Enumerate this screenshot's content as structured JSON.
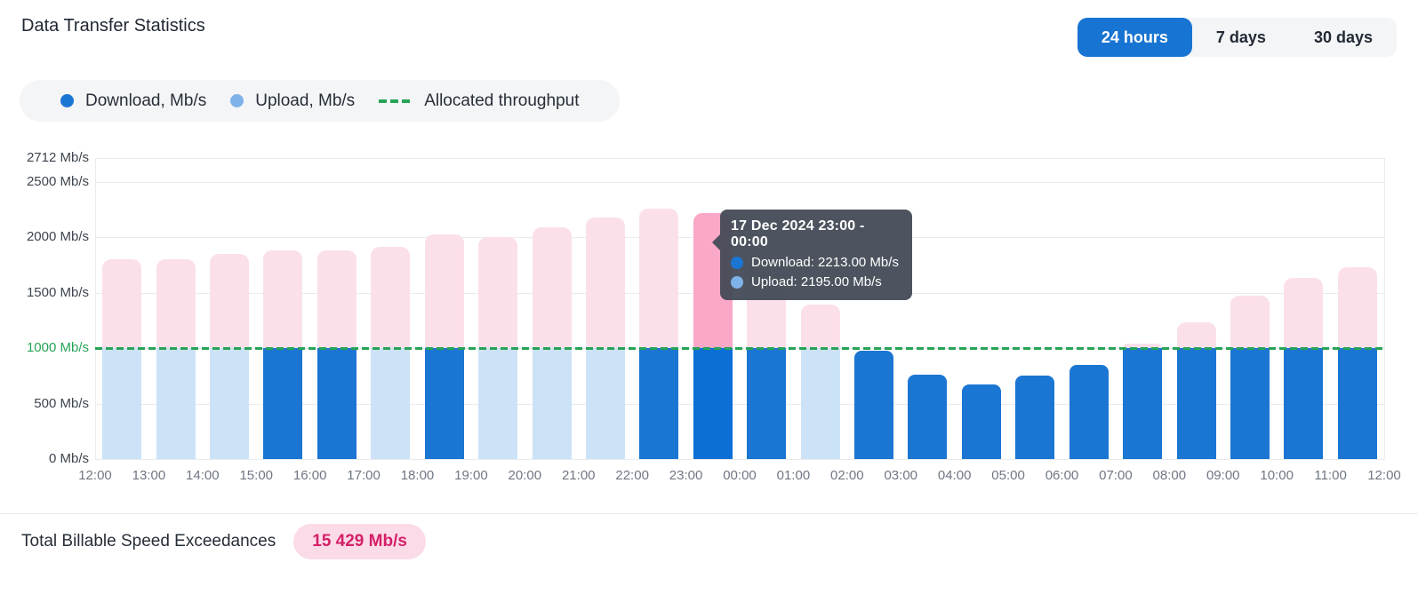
{
  "header": {
    "title": "Data Transfer Statistics",
    "ranges": [
      {
        "label": "24 hours",
        "selected": true
      },
      {
        "label": "7 days",
        "selected": false
      },
      {
        "label": "30 days",
        "selected": false
      }
    ]
  },
  "legend": {
    "download_label": "Download, Mb/s",
    "upload_label": "Upload, Mb/s",
    "allocated_label": "Allocated throughput"
  },
  "tooltip": {
    "title": "17 Dec 2024 23:00 - 00:00",
    "rows": [
      {
        "series": "download",
        "label": "Download: 2213.00 Mb/s"
      },
      {
        "series": "upload",
        "label": "Upload: 2195.00 Mb/s"
      }
    ]
  },
  "footer": {
    "label": "Total Billable Speed Exceedances",
    "badge": "15 429 Mb/s"
  },
  "colors": {
    "download": "#1B76D3",
    "download_highlight": "#0B6FD6",
    "upload_bar": "#CCE3F7",
    "upload_dot": "#7FB2E9",
    "exceed": "#FBE0EA",
    "exceed_highlight": "#F9A8C7",
    "allocated_green": "#26A356",
    "selected_button": "#1774D2",
    "badge_bg": "#FBDBE7",
    "badge_text": "#D42069",
    "tooltip_bg": "#424955"
  },
  "chart_data": {
    "type": "bar",
    "title": "Data Transfer Statistics",
    "xlabel": "",
    "ylabel": "Mb/s",
    "ylim": [
      0,
      2712
    ],
    "grid": true,
    "legend_position": "top-left",
    "allocated_throughput": 1000,
    "y_ticks": [
      {
        "value": 2712,
        "label": "2712 Mb/s"
      },
      {
        "value": 2500,
        "label": "2500 Mb/s"
      },
      {
        "value": 2000,
        "label": "2000 Mb/s"
      },
      {
        "value": 1500,
        "label": "1500 Mb/s"
      },
      {
        "value": 1000,
        "label": "1000 Mb/s"
      },
      {
        "value": 500,
        "label": "500 Mb/s"
      },
      {
        "value": 0,
        "label": "0 Mb/s"
      }
    ],
    "x_ticks": [
      "12:00",
      "13:00",
      "14:00",
      "15:00",
      "16:00",
      "17:00",
      "18:00",
      "19:00",
      "20:00",
      "21:00",
      "22:00",
      "23:00",
      "00:00",
      "01:00",
      "02:00",
      "03:00",
      "04:00",
      "05:00",
      "06:00",
      "07:00",
      "08:00",
      "09:00",
      "10:00",
      "11:00",
      "12:00"
    ],
    "bars": [
      {
        "interval": "12:00-13:00",
        "value": 1800,
        "series": "upload"
      },
      {
        "interval": "13:00-14:00",
        "value": 1800,
        "series": "upload"
      },
      {
        "interval": "14:00-15:00",
        "value": 1850,
        "series": "upload"
      },
      {
        "interval": "15:00-16:00",
        "value": 1880,
        "series": "download"
      },
      {
        "interval": "16:00-17:00",
        "value": 1880,
        "series": "download"
      },
      {
        "interval": "17:00-18:00",
        "value": 1910,
        "series": "upload"
      },
      {
        "interval": "18:00-19:00",
        "value": 2025,
        "series": "download"
      },
      {
        "interval": "19:00-20:00",
        "value": 2000,
        "series": "upload"
      },
      {
        "interval": "20:00-21:00",
        "value": 2090,
        "series": "upload"
      },
      {
        "interval": "21:00-22:00",
        "value": 2180,
        "series": "upload"
      },
      {
        "interval": "22:00-23:00",
        "value": 2260,
        "series": "download"
      },
      {
        "interval": "23:00-00:00",
        "value": 2213,
        "series": "download",
        "highlight": true,
        "download": 2213.0,
        "upload": 2195.0
      },
      {
        "interval": "00:00-01:00",
        "value": 1750,
        "series": "download"
      },
      {
        "interval": "01:00-02:00",
        "value": 1390,
        "series": "upload"
      },
      {
        "interval": "02:00-03:00",
        "value": 975,
        "series": "download"
      },
      {
        "interval": "03:00-04:00",
        "value": 760,
        "series": "download"
      },
      {
        "interval": "04:00-05:00",
        "value": 670,
        "series": "download"
      },
      {
        "interval": "05:00-06:00",
        "value": 755,
        "series": "download"
      },
      {
        "interval": "06:00-07:00",
        "value": 850,
        "series": "download"
      },
      {
        "interval": "07:00-08:00",
        "value": 1040,
        "series": "download"
      },
      {
        "interval": "08:00-09:00",
        "value": 1230,
        "series": "download"
      },
      {
        "interval": "09:00-10:00",
        "value": 1475,
        "series": "download"
      },
      {
        "interval": "10:00-11:00",
        "value": 1635,
        "series": "download"
      },
      {
        "interval": "11:00-12:00",
        "value": 1725,
        "series": "download"
      }
    ]
  }
}
